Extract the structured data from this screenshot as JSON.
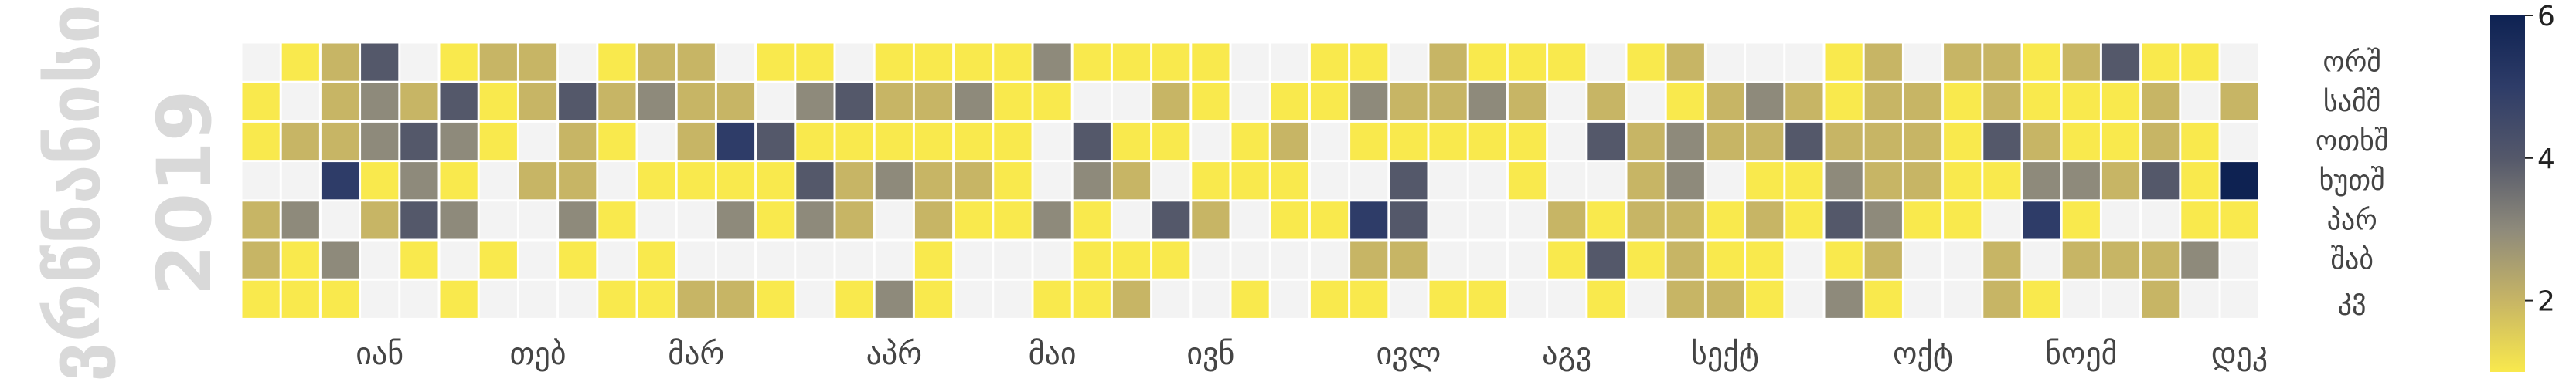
{
  "chart_data": {
    "type": "heatmap",
    "title": "",
    "year_label": "2019",
    "side_label": "ვრწნანისი",
    "weekday_labels": [
      "ორშ",
      "სამშ",
      "ოთხშ",
      "ხუთშ",
      "პარ",
      "შაბ",
      "კვ"
    ],
    "month_labels": [
      "იან",
      "თებ",
      "მარ",
      "აპრ",
      "მაი",
      "ივნ",
      "ივლ",
      "აგვ",
      "სექტ",
      "ოქტ",
      "ნოემ",
      "დეკ"
    ],
    "month_label_weeks": [
      3,
      7,
      11,
      16,
      20,
      24,
      29,
      33,
      37,
      42,
      46,
      50
    ],
    "colorbar": {
      "min": 1,
      "max": 6,
      "ticks": [
        2,
        4,
        6
      ]
    },
    "colormap": [
      "#f9e94d",
      "#c7b565",
      "#8e8a7b",
      "#54586a",
      "#2e3c68",
      "#0e2252"
    ],
    "empty_color": "#f3f3f3",
    "values": [
      [
        0,
        1,
        2,
        4,
        0,
        1,
        2,
        2,
        0,
        1,
        2,
        2,
        0,
        1,
        1,
        0,
        1,
        1,
        1,
        1,
        3,
        1,
        1,
        1,
        1,
        0,
        0,
        1,
        1,
        0,
        2,
        1,
        1,
        1,
        0,
        1,
        2,
        0,
        0,
        0,
        1,
        2,
        0,
        2,
        2,
        1,
        2,
        4,
        1,
        1,
        0
      ],
      [
        1,
        0,
        2,
        3,
        2,
        4,
        1,
        2,
        4,
        2,
        3,
        2,
        2,
        0,
        3,
        4,
        2,
        2,
        3,
        1,
        1,
        0,
        0,
        2,
        1,
        0,
        1,
        1,
        3,
        2,
        2,
        3,
        2,
        0,
        2,
        0,
        1,
        2,
        3,
        2,
        1,
        2,
        2,
        1,
        2,
        1,
        1,
        1,
        2,
        0,
        2
      ],
      [
        1,
        2,
        2,
        3,
        4,
        3,
        1,
        0,
        2,
        1,
        0,
        2,
        5,
        4,
        1,
        1,
        1,
        1,
        1,
        1,
        0,
        4,
        1,
        1,
        0,
        1,
        2,
        0,
        1,
        1,
        1,
        1,
        1,
        0,
        4,
        2,
        3,
        2,
        2,
        4,
        2,
        2,
        2,
        1,
        4,
        2,
        1,
        1,
        2,
        1,
        0
      ],
      [
        0,
        0,
        5,
        1,
        3,
        1,
        0,
        2,
        2,
        0,
        1,
        1,
        1,
        1,
        4,
        2,
        3,
        2,
        2,
        1,
        0,
        3,
        2,
        0,
        1,
        1,
        1,
        0,
        0,
        4,
        0,
        0,
        1,
        0,
        0,
        2,
        3,
        0,
        1,
        1,
        3,
        2,
        2,
        1,
        1,
        3,
        3,
        2,
        4,
        1,
        6
      ],
      [
        2,
        3,
        0,
        2,
        4,
        3,
        0,
        0,
        3,
        1,
        0,
        0,
        3,
        1,
        3,
        2,
        0,
        2,
        1,
        1,
        3,
        1,
        0,
        4,
        2,
        0,
        1,
        1,
        5,
        4,
        0,
        0,
        0,
        2,
        1,
        2,
        2,
        1,
        2,
        1,
        4,
        3,
        1,
        1,
        0,
        5,
        1,
        0,
        0,
        1,
        1
      ],
      [
        2,
        1,
        3,
        0,
        1,
        0,
        1,
        0,
        1,
        0,
        1,
        0,
        0,
        0,
        0,
        0,
        0,
        1,
        0,
        0,
        0,
        1,
        1,
        1,
        0,
        0,
        0,
        0,
        2,
        2,
        0,
        0,
        0,
        1,
        4,
        1,
        2,
        1,
        1,
        0,
        1,
        2,
        0,
        0,
        2,
        0,
        2,
        2,
        2,
        3,
        0
      ],
      [
        1,
        1,
        1,
        0,
        0,
        1,
        0,
        0,
        0,
        1,
        1,
        2,
        2,
        1,
        0,
        1,
        3,
        1,
        0,
        0,
        1,
        1,
        2,
        0,
        0,
        1,
        0,
        1,
        1,
        0,
        1,
        1,
        0,
        0,
        1,
        0,
        2,
        2,
        1,
        0,
        3,
        1,
        0,
        0,
        2,
        1,
        0,
        0,
        2,
        0,
        0
      ]
    ]
  }
}
